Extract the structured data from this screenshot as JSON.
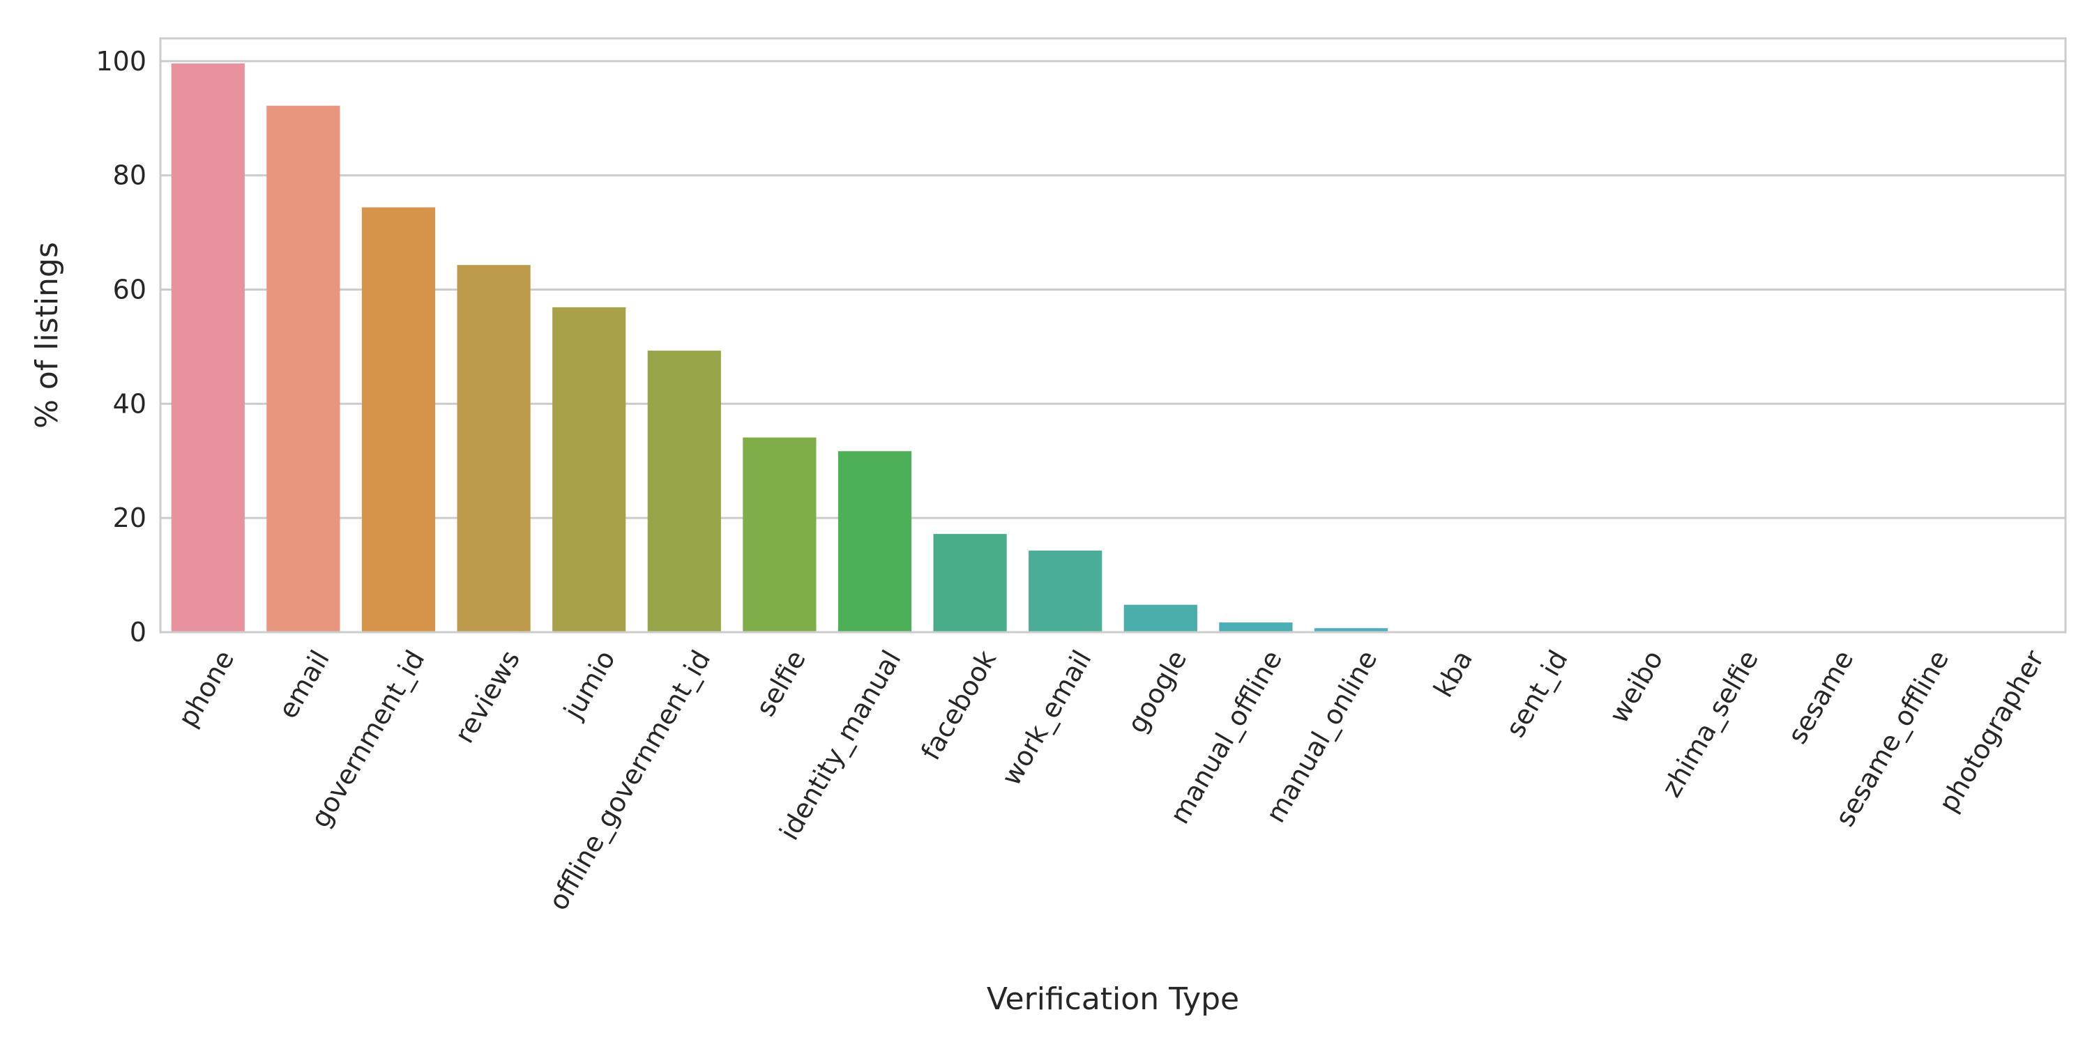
{
  "chart_data": {
    "type": "bar",
    "title": "",
    "xlabel": "Verification Type",
    "ylabel": "% of listings",
    "ylim": [
      0,
      104
    ],
    "yticks": [
      0,
      20,
      40,
      60,
      80,
      100
    ],
    "grid": true,
    "categories": [
      "phone",
      "email",
      "government_id",
      "reviews",
      "jumio",
      "offline_government_id",
      "selfie",
      "identity_manual",
      "facebook",
      "work_email",
      "google",
      "manual_offline",
      "manual_online",
      "kba",
      "sent_id",
      "weibo",
      "zhima_selfie",
      "sesame",
      "sesame_offline",
      "photographer"
    ],
    "values": [
      99.6,
      92.2,
      74.4,
      64.3,
      56.9,
      49.3,
      34.1,
      31.7,
      17.2,
      14.3,
      4.8,
      1.7,
      0.7,
      0.05,
      0.03,
      0.02,
      0.01,
      0.01,
      0.01,
      0.01
    ],
    "colors": [
      "#e8929f",
      "#e8967e",
      "#d6934a",
      "#bd9a4c",
      "#a9a04a",
      "#97a447",
      "#7fad4a",
      "#4daf56",
      "#48ad88",
      "#49ad98",
      "#4aafaa",
      "#4baeb5",
      "#4cafbf",
      "#4cb0c6",
      "#4eb1d0",
      "#4fb2da",
      "#51b3e4",
      "#53b4ed",
      "#55b5f6",
      "#57b6ff"
    ]
  }
}
